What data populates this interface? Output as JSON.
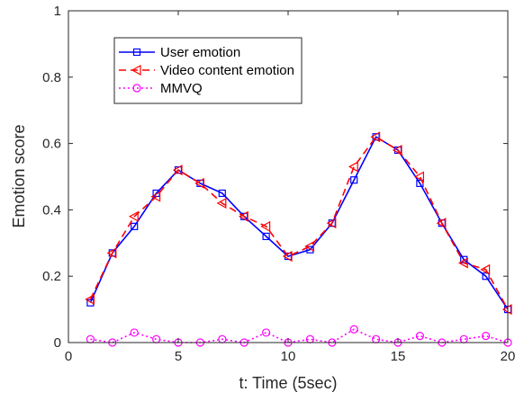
{
  "chart_data": {
    "type": "line",
    "title": "",
    "xlabel": "t: Time (5sec)",
    "ylabel": "Emotion score",
    "xlim": [
      0,
      20
    ],
    "ylim": [
      0,
      1
    ],
    "xticks": [
      "0",
      "5",
      "10",
      "15",
      "20"
    ],
    "yticks": [
      "0",
      "0.2",
      "0.4",
      "0.6",
      "0.8",
      "1"
    ],
    "grid": false,
    "legend": "top-left",
    "x": [
      1,
      2,
      3,
      4,
      5,
      6,
      7,
      8,
      9,
      10,
      11,
      12,
      13,
      14,
      15,
      16,
      17,
      18,
      19,
      20
    ],
    "series": [
      {
        "name": "User emotion",
        "color": "#0000ff",
        "line_style": "solid",
        "marker": "square",
        "values": [
          0.12,
          0.27,
          0.35,
          0.45,
          0.52,
          0.48,
          0.45,
          0.38,
          0.32,
          0.26,
          0.28,
          0.36,
          0.49,
          0.62,
          0.58,
          0.48,
          0.36,
          0.25,
          0.2,
          0.1
        ]
      },
      {
        "name": "Video content emotion",
        "color": "#ff0000",
        "line_style": "dashed",
        "marker": "triangle-left",
        "values": [
          0.13,
          0.27,
          0.38,
          0.44,
          0.52,
          0.48,
          0.42,
          0.38,
          0.35,
          0.26,
          0.29,
          0.36,
          0.53,
          0.62,
          0.58,
          0.5,
          0.36,
          0.24,
          0.22,
          0.1
        ]
      },
      {
        "name": "MMVQ",
        "color": "#ff00ff",
        "line_style": "dotted",
        "marker": "circle",
        "values": [
          0.01,
          0.0,
          0.03,
          0.01,
          0.0,
          0.0,
          0.01,
          0.0,
          0.03,
          0.0,
          0.01,
          0.0,
          0.04,
          0.01,
          0.0,
          0.02,
          0.0,
          0.01,
          0.02,
          0.0
        ]
      }
    ]
  }
}
